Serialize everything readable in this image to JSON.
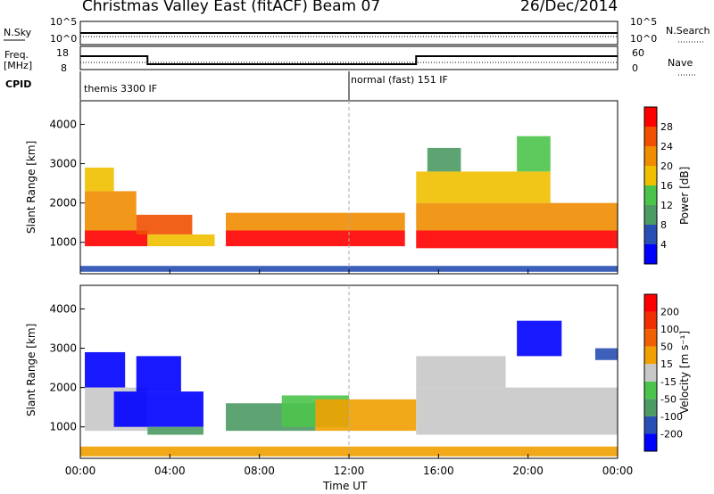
{
  "header": {
    "station": "Christmas Valley East (fitACF)",
    "beam": "Beam 07",
    "date": "26/Dec/2014"
  },
  "nsky_panel": {
    "left_label": "N.Sky",
    "left_ticks": [
      "10^5",
      "10^0"
    ],
    "right_label": "N.Search",
    "right_ticks": [
      "10^5",
      "10^0"
    ]
  },
  "freq_panel": {
    "left_label_1": "Freq.",
    "left_label_2": "[MHz]",
    "left_ticks": [
      "18",
      "8"
    ],
    "right_label": "Nave",
    "right_ticks": [
      "60",
      "0"
    ]
  },
  "cpid": {
    "label": "CPID",
    "mode_1": "themis 3300 IF",
    "mode_2": "normal (fast) 151 IF"
  },
  "colors": {
    "power_scale": [
      "#0000ff",
      "#2850b4",
      "#4c9a64",
      "#4cc44c",
      "#f0c000",
      "#f08c00",
      "#f05000",
      "#ff0000"
    ],
    "velocity_scale": [
      "#0000ff",
      "#2850b4",
      "#4c9a64",
      "#4cc44c",
      "#c8c8c8",
      "#f0a000",
      "#f06000",
      "#f03000",
      "#ff0000"
    ]
  },
  "chart_data": [
    {
      "type": "heatmap",
      "name": "power",
      "ylabel": "Slant Range [km]",
      "y_ticks": [
        1000,
        2000,
        3000,
        4000
      ],
      "ylim": [
        200,
        4600
      ],
      "xlim": [
        0,
        24
      ],
      "colorbar": {
        "label": "Power [dB]",
        "ticks": [
          "28",
          "24",
          "20",
          "16",
          "12",
          "8",
          "4"
        ]
      },
      "bands": [
        {
          "t": [
            0.2,
            3.0
          ],
          "r": [
            900,
            1300
          ],
          "level": 7
        },
        {
          "t": [
            0.2,
            2.5
          ],
          "r": [
            1300,
            2300
          ],
          "level": 5
        },
        {
          "t": [
            0.2,
            1.5
          ],
          "r": [
            2300,
            2900
          ],
          "level": 4
        },
        {
          "t": [
            2.5,
            5.0
          ],
          "r": [
            1200,
            1700
          ],
          "level": 6
        },
        {
          "t": [
            3.0,
            6.0
          ],
          "r": [
            900,
            1200
          ],
          "level": 4
        },
        {
          "t": [
            6.5,
            14.5
          ],
          "r": [
            900,
            1300
          ],
          "level": 7
        },
        {
          "t": [
            6.5,
            14.5
          ],
          "r": [
            1300,
            1750
          ],
          "level": 5
        },
        {
          "t": [
            15.0,
            24.0
          ],
          "r": [
            850,
            1300
          ],
          "level": 7
        },
        {
          "t": [
            15.0,
            24.0
          ],
          "r": [
            1300,
            2000
          ],
          "level": 5
        },
        {
          "t": [
            15.0,
            21.0
          ],
          "r": [
            2000,
            2800
          ],
          "level": 4
        },
        {
          "t": [
            15.5,
            17.0
          ],
          "r": [
            2800,
            3400
          ],
          "level": 2
        },
        {
          "t": [
            19.5,
            21.0
          ],
          "r": [
            2800,
            3700
          ],
          "level": 3
        },
        {
          "t": [
            0.0,
            24.0
          ],
          "r": [
            250,
            400
          ],
          "level": 1
        }
      ]
    },
    {
      "type": "heatmap",
      "name": "velocity",
      "ylabel": "Slant Range [km]",
      "xlabel": "Time UT",
      "x_ticks": [
        "00:00",
        "04:00",
        "08:00",
        "12:00",
        "16:00",
        "20:00",
        "00:00"
      ],
      "y_ticks": [
        1000,
        2000,
        3000,
        4000
      ],
      "ylim": [
        200,
        4600
      ],
      "xlim": [
        0,
        24
      ],
      "colorbar": {
        "label": "Velocity [m s⁻¹]",
        "ticks": [
          "200",
          "100",
          "50",
          "15",
          "-15",
          "-50",
          "-100",
          "-200"
        ]
      },
      "bands": [
        {
          "t": [
            0.2,
            2.0
          ],
          "r": [
            2000,
            2900
          ],
          "level": 0
        },
        {
          "t": [
            0.2,
            3.0
          ],
          "r": [
            900,
            2000
          ],
          "level": 4
        },
        {
          "t": [
            1.5,
            5.5
          ],
          "r": [
            1000,
            1900
          ],
          "level": 0
        },
        {
          "t": [
            2.5,
            4.5
          ],
          "r": [
            1900,
            2800
          ],
          "level": 0
        },
        {
          "t": [
            3.0,
            5.5
          ],
          "r": [
            800,
            1000
          ],
          "level": 2
        },
        {
          "t": [
            6.5,
            10.5
          ],
          "r": [
            900,
            1600
          ],
          "level": 2
        },
        {
          "t": [
            9.0,
            12.0
          ],
          "r": [
            1000,
            1800
          ],
          "level": 3
        },
        {
          "t": [
            10.5,
            15.0
          ],
          "r": [
            900,
            1700
          ],
          "level": 5
        },
        {
          "t": [
            0.0,
            24.0
          ],
          "r": [
            250,
            500
          ],
          "level": 5
        },
        {
          "t": [
            15.0,
            24.0
          ],
          "r": [
            800,
            2000
          ],
          "level": 4
        },
        {
          "t": [
            15.0,
            19.0
          ],
          "r": [
            2000,
            2800
          ],
          "level": 4
        },
        {
          "t": [
            19.5,
            21.5
          ],
          "r": [
            2800,
            3700
          ],
          "level": 0
        },
        {
          "t": [
            23.0,
            24.0
          ],
          "r": [
            2700,
            3000
          ],
          "level": 1
        }
      ]
    }
  ]
}
